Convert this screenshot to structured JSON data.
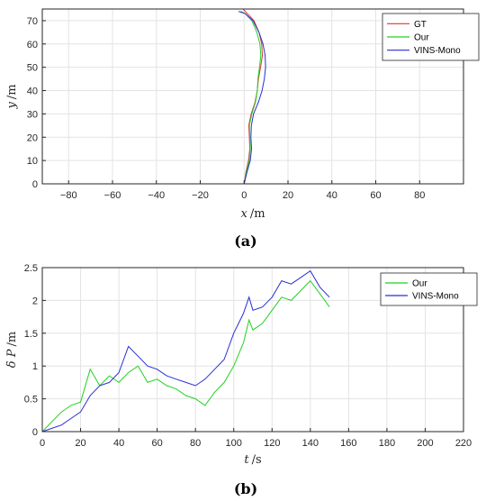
{
  "chart_data": [
    {
      "type": "line",
      "caption": "(a)",
      "xlabel": "x",
      "xunit": "/m",
      "ylabel": "y",
      "yunit": "/m",
      "xlim": [
        -92,
        100
      ],
      "ylim": [
        0,
        75
      ],
      "xticks": [
        -80,
        -60,
        -40,
        -20,
        0,
        20,
        40,
        60,
        80
      ],
      "yticks": [
        0,
        10,
        20,
        30,
        40,
        50,
        60,
        70
      ],
      "grid": true,
      "legend_position": "top-right",
      "series": [
        {
          "name": "GT",
          "color": "#d9372a",
          "x": [
            0,
            0.8,
            2,
            2.6,
            2.4,
            2.1,
            3.2,
            5,
            6,
            6.5,
            7.5,
            8.3,
            8,
            6.8,
            4.5,
            1.5,
            -0.5
          ],
          "y": [
            0,
            5,
            10,
            15,
            20,
            25,
            30,
            35,
            40,
            45,
            50,
            55,
            60,
            65,
            70,
            73,
            75
          ]
        },
        {
          "name": "Our",
          "color": "#22d122",
          "x": [
            0,
            1,
            2.3,
            2.8,
            2.6,
            2.4,
            3.5,
            5.2,
            6,
            6.3,
            7,
            7.6,
            7.2,
            5.8,
            3.5,
            0.5,
            -1.5
          ],
          "y": [
            0,
            5,
            10,
            15,
            20,
            25,
            30,
            35,
            40,
            45,
            50,
            55,
            60,
            65,
            70,
            73,
            74
          ]
        },
        {
          "name": "VINS-Mono",
          "color": "#2a2ed4",
          "x": [
            0,
            1.3,
            2.8,
            3.4,
            3.1,
            3.3,
            4.3,
            6.5,
            8.2,
            9.2,
            9.8,
            9.6,
            8.6,
            6.8,
            4,
            0.5,
            -2.5
          ],
          "y": [
            0,
            5,
            10,
            15,
            20,
            25,
            30,
            35,
            40,
            45,
            50,
            55,
            60,
            65,
            70,
            73,
            74
          ]
        }
      ]
    },
    {
      "type": "line",
      "caption": "(b)",
      "xlabel": "t",
      "xunit": "/s",
      "ylabel": "δ P",
      "yunit": "/m",
      "xlim": [
        0,
        220
      ],
      "ylim": [
        0,
        2.5
      ],
      "xticks": [
        0,
        20,
        40,
        60,
        80,
        100,
        120,
        140,
        160,
        180,
        200,
        220
      ],
      "yticks": [
        0,
        0.5,
        1,
        1.5,
        2,
        2.5
      ],
      "grid": true,
      "legend_position": "top-right",
      "series": [
        {
          "name": "Our",
          "color": "#22d122",
          "x": [
            0,
            5,
            10,
            15,
            20,
            25,
            30,
            35,
            40,
            45,
            50,
            55,
            60,
            65,
            70,
            75,
            80,
            85,
            90,
            95,
            100,
            105,
            108,
            110,
            115,
            120,
            125,
            130,
            135,
            140,
            145,
            150
          ],
          "y": [
            0,
            0.15,
            0.3,
            0.4,
            0.45,
            0.95,
            0.7,
            0.85,
            0.75,
            0.9,
            1.0,
            0.75,
            0.8,
            0.7,
            0.65,
            0.55,
            0.5,
            0.4,
            0.6,
            0.75,
            1.0,
            1.35,
            1.7,
            1.55,
            1.65,
            1.85,
            2.05,
            2.0,
            2.15,
            2.3,
            2.1,
            1.9
          ]
        },
        {
          "name": "VINS-Mono",
          "color": "#2a2ed4",
          "x": [
            0,
            5,
            10,
            15,
            20,
            25,
            30,
            35,
            40,
            45,
            50,
            55,
            60,
            65,
            70,
            75,
            80,
            85,
            90,
            95,
            100,
            105,
            108,
            110,
            115,
            120,
            125,
            130,
            135,
            140,
            145,
            150
          ],
          "y": [
            0,
            0.05,
            0.1,
            0.2,
            0.3,
            0.55,
            0.7,
            0.75,
            0.9,
            1.3,
            1.15,
            1.0,
            0.95,
            0.85,
            0.8,
            0.75,
            0.7,
            0.8,
            0.95,
            1.1,
            1.5,
            1.8,
            2.05,
            1.85,
            1.9,
            2.05,
            2.3,
            2.25,
            2.35,
            2.45,
            2.2,
            2.05
          ]
        }
      ]
    }
  ]
}
